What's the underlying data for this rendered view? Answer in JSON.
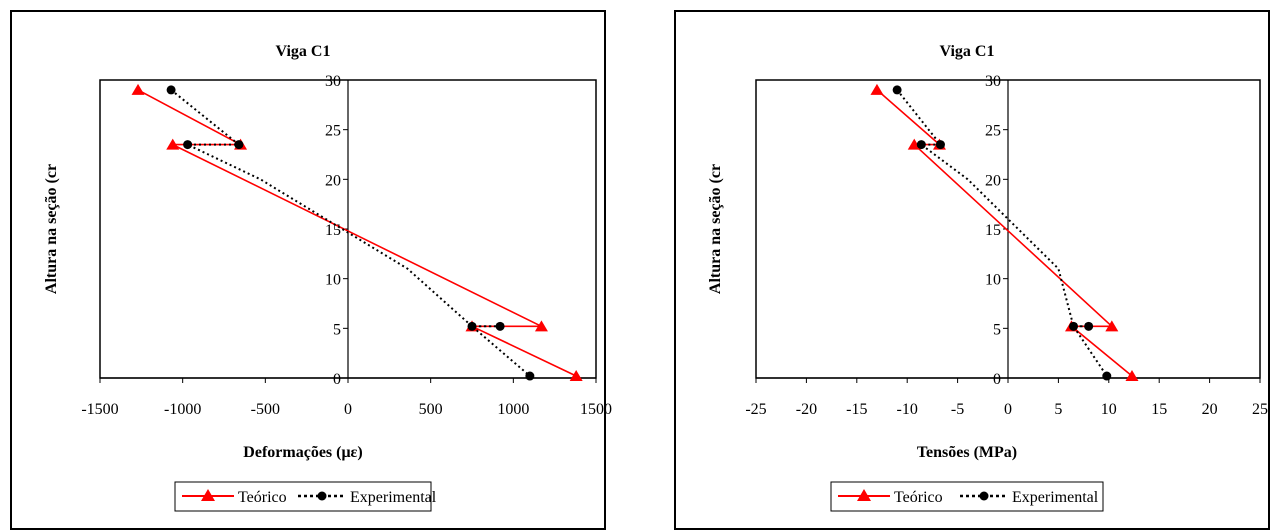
{
  "chart_data": [
    {
      "type": "line",
      "title": "Viga C1",
      "xlabel": "Deformações (",
      "xlabel_symbol": "με",
      "xlabel_suffix": ")",
      "ylabel": "Altura na seção (cr",
      "xlim": [
        -1500,
        1500
      ],
      "ylim": [
        0,
        30
      ],
      "xticks": [
        -1500,
        -1000,
        -500,
        0,
        500,
        1000,
        1500
      ],
      "yticks": [
        0,
        5,
        10,
        15,
        20,
        25,
        30
      ],
      "legend_position": "bottom",
      "series": [
        {
          "name": "Teórico",
          "color": "#ff0000",
          "marker": "triangle",
          "line": "solid",
          "x": [
            -1270,
            -650,
            -1060,
            1170,
            750,
            1380
          ],
          "y": [
            29,
            23.5,
            23.5,
            5.2,
            5.2,
            0.2
          ]
        },
        {
          "name": "Experimental",
          "color": "#000000",
          "marker": "circle",
          "line": "dotted",
          "x": [
            -1070,
            -660,
            -970,
            -530,
            360,
            750,
            920,
            750,
            1100
          ],
          "y": [
            29,
            23.5,
            23.5,
            20,
            11,
            5.2,
            5.2,
            5.2,
            0.2
          ],
          "marker_indices": [
            0,
            1,
            2,
            5,
            6,
            8
          ]
        }
      ]
    },
    {
      "type": "line",
      "title": "Viga C1",
      "xlabel": "Tensões (MPa)",
      "ylabel": "Altura na seção (cr",
      "xlim": [
        -25,
        25
      ],
      "ylim": [
        0,
        30
      ],
      "xticks": [
        -25,
        -20,
        -15,
        -10,
        -5,
        0,
        5,
        10,
        15,
        20,
        25
      ],
      "yticks": [
        0,
        5,
        10,
        15,
        20,
        25,
        30
      ],
      "legend_position": "bottom",
      "series": [
        {
          "name": "Teórico",
          "color": "#ff0000",
          "marker": "triangle",
          "line": "solid",
          "x": [
            -13,
            -6.8,
            -9.3,
            10.3,
            6.3,
            12.3
          ],
          "y": [
            29,
            23.5,
            23.5,
            5.2,
            5.2,
            0.2
          ]
        },
        {
          "name": "Experimental",
          "color": "#000000",
          "marker": "circle",
          "line": "dotted",
          "x": [
            -11,
            -6.7,
            -8.6,
            -4,
            5,
            6.5,
            8,
            6.5,
            9.8
          ],
          "y": [
            29,
            23.5,
            23.5,
            20,
            11,
            5.2,
            5.2,
            5.2,
            0.2
          ],
          "marker_indices": [
            0,
            1,
            2,
            5,
            6,
            8
          ]
        }
      ]
    }
  ]
}
